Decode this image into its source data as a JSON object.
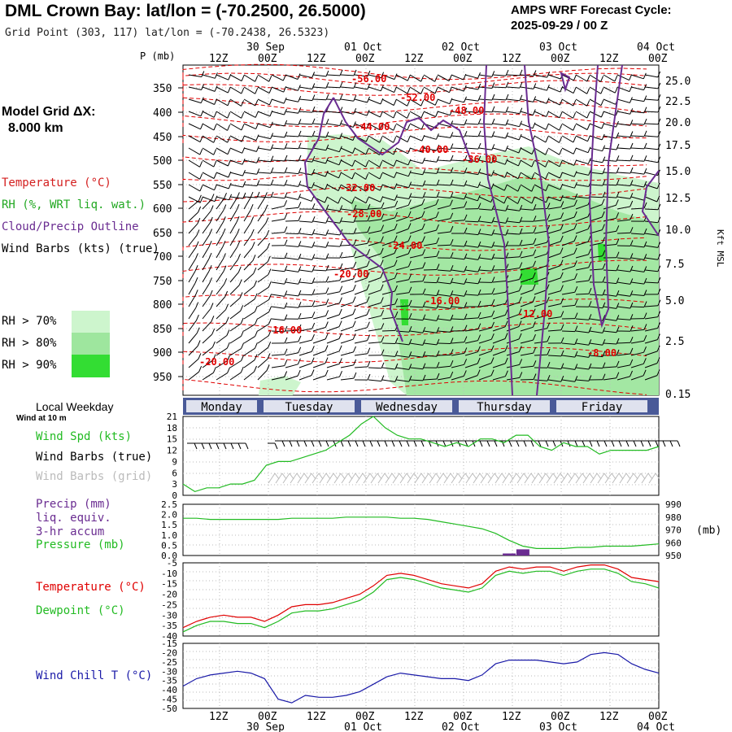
{
  "header": {
    "title": "DML Crown Bay:  lat/lon = (-70.2500, 26.5000)",
    "grid_point": "Grid Point (303, 117) lat/lon = (-70.2438, 26.5323)",
    "cycle_line1": "AMPS WRF Forecast Cycle:",
    "cycle_line2": "2025-09-29 / 00  Z"
  },
  "left_panel": {
    "model_grid_line1": "Model Grid ΔX:",
    "model_grid_line2": "8.000 km",
    "legend": [
      {
        "label": "Temperature (°C)",
        "color": "#d42020"
      },
      {
        "label": "RH (%, WRT liq. wat.)",
        "color": "#22a822"
      },
      {
        "label": "Cloud/Precip Outline",
        "color": "#6a2c91"
      },
      {
        "label": "Wind Barbs (kts) (true)",
        "color": "#000000"
      }
    ],
    "rh_legend": [
      {
        "label": "RH > 70%",
        "color": "#cdf5cd"
      },
      {
        "label": "RH > 80%",
        "color": "#9ee69e"
      },
      {
        "label": "RH > 90%",
        "color": "#33dd33"
      }
    ],
    "local_weekday": "Local Weekday",
    "wind_at": "Wind at 10 m",
    "wind_spd": "Wind Spd (kts)",
    "wind_barbs_true": "Wind Barbs (true)",
    "wind_barbs_grid": "Wind Barbs (grid)",
    "precip1": "Precip (mm)",
    "precip2": "liq. equiv.",
    "precip3": "3-hr accum",
    "pressure": "Pressure (mb)",
    "temperature": "Temperature (°C)",
    "dewpoint": "Dewpoint (°C)",
    "wind_chill": "Wind Chill T (°C)"
  },
  "colors": {
    "temp": "#e00000",
    "green": "#22bb22",
    "purple": "#6a2c91",
    "blue": "#1a1aa8",
    "weekday_bar": "#4a5a98"
  },
  "chart_data": [
    {
      "type": "heatmap",
      "title": "Time-height cross section",
      "ylabel": "P (mb)",
      "yright_label": "Kft MSL",
      "y_ticks": [
        "350",
        "400",
        "450",
        "500",
        "550",
        "600",
        "650",
        "700",
        "750",
        "800",
        "850",
        "900",
        "950"
      ],
      "yright_ticks": [
        "25.0",
        "22.5",
        "20.0",
        "17.5",
        "15.0",
        "12.5",
        "10.0",
        "7.5",
        "5.0",
        "2.5",
        "0.15"
      ],
      "top_time_ticks": [
        "12Z",
        "00Z",
        "12Z",
        "00Z",
        "12Z",
        "00Z",
        "12Z",
        "00Z",
        "12Z",
        "00Z"
      ],
      "top_date_labels": [
        "30 Sep",
        "01 Oct",
        "02 Oct",
        "03 Oct",
        "04 Oct"
      ],
      "temperature_labels": [
        "-56.00",
        "-52.00",
        "-48.00",
        "-44.00",
        "-40.00",
        "-36.00",
        "-32.00",
        "-28.00",
        "-24.00",
        "-20.00",
        "-16.00",
        "-16.00",
        "-12.00",
        "-8.00",
        "-20.00"
      ]
    },
    {
      "type": "line",
      "title": "Wind Spd (kts)",
      "weekdays": [
        "Monday",
        "Tuesday",
        "Wednesday",
        "Thursday",
        "Friday"
      ],
      "y_ticks": [
        "21",
        "18",
        "15",
        "12",
        "9",
        "6",
        "3",
        "0"
      ],
      "ylim": [
        0,
        21
      ],
      "series": [
        {
          "name": "Wind Spd",
          "values": [
            3,
            1,
            2,
            2,
            3,
            3,
            4,
            8,
            9,
            9,
            10,
            11,
            12,
            14,
            16,
            19,
            21,
            18,
            16,
            15,
            15,
            14,
            13,
            14,
            13,
            15,
            15,
            14,
            16,
            16,
            13,
            12,
            14,
            13,
            13,
            11,
            12,
            12,
            12,
            12,
            13
          ]
        }
      ]
    },
    {
      "type": "line",
      "title": "Precip / Pressure",
      "y_ticks_left": [
        "2.5",
        "2.0",
        "1.5",
        "1.0",
        "0.5",
        "0.0"
      ],
      "y_ticks_right": [
        "990",
        "980",
        "970",
        "960",
        "950"
      ],
      "right_unit": "(mb)",
      "ylim_left": [
        0,
        2.5
      ],
      "ylim_right": [
        948,
        992
      ],
      "series": [
        {
          "name": "Pressure",
          "values": [
            980,
            980,
            979,
            979,
            979,
            979,
            979,
            979,
            980,
            980,
            980,
            980,
            981,
            981,
            981,
            981,
            980,
            980,
            979,
            977,
            975,
            973,
            971,
            967,
            961,
            956,
            954,
            954,
            954,
            955,
            955,
            956,
            956,
            956,
            957,
            958
          ]
        },
        {
          "name": "Precip",
          "values": [
            0,
            0,
            0,
            0,
            0,
            0,
            0,
            0,
            0,
            0,
            0,
            0,
            0,
            0,
            0,
            0,
            0,
            0,
            0,
            0,
            0,
            0,
            0,
            0,
            0.1,
            0.3,
            0,
            0,
            0,
            0,
            0,
            0,
            0,
            0,
            0,
            0
          ]
        }
      ]
    },
    {
      "type": "line",
      "title": "Temperature / Dewpoint",
      "y_ticks": [
        "-5",
        "-10",
        "-15",
        "-20",
        "-25",
        "-30",
        "-35",
        "-40"
      ],
      "ylim": [
        -40,
        -5
      ],
      "series": [
        {
          "name": "Temperature",
          "values": [
            -36,
            -33,
            -31,
            -30,
            -31,
            -31,
            -33,
            -30,
            -26,
            -25,
            -25,
            -24,
            -22,
            -20,
            -16,
            -11,
            -10,
            -11,
            -13,
            -15,
            -16,
            -17,
            -15,
            -9,
            -7,
            -8,
            -7,
            -7,
            -9,
            -7,
            -6,
            -6,
            -8,
            -12,
            -13,
            -14
          ]
        },
        {
          "name": "Dewpoint",
          "values": [
            -38,
            -35,
            -33,
            -33,
            -34,
            -34,
            -36,
            -33,
            -29,
            -28,
            -28,
            -27,
            -25,
            -23,
            -19,
            -13,
            -12,
            -13,
            -15,
            -17,
            -18,
            -19,
            -17,
            -11,
            -9,
            -10,
            -9,
            -9,
            -11,
            -9,
            -8,
            -8,
            -10,
            -14,
            -15,
            -17
          ]
        }
      ]
    },
    {
      "type": "line",
      "title": "Wind Chill T (°C)",
      "y_ticks": [
        "-15",
        "-20",
        "-25",
        "-30",
        "-35",
        "-40",
        "-45",
        "-50"
      ],
      "ylim": [
        -50,
        -15
      ],
      "series": [
        {
          "name": "Wind Chill",
          "values": [
            -38,
            -34,
            -32,
            -31,
            -30,
            -31,
            -34,
            -45,
            -47,
            -43,
            -44,
            -44,
            -43,
            -41,
            -37,
            -33,
            -31,
            -32,
            -33,
            -34,
            -34,
            -35,
            -32,
            -26,
            -24,
            -24,
            -24,
            -25,
            -26,
            -25,
            -21,
            -20,
            -21,
            -26,
            -29,
            -31
          ]
        }
      ]
    }
  ],
  "bottom_axis": {
    "time_ticks": [
      "12Z",
      "00Z",
      "12Z",
      "00Z",
      "12Z",
      "00Z",
      "12Z",
      "00Z",
      "12Z",
      "00Z"
    ],
    "date_labels": [
      "30 Sep",
      "01 Oct",
      "02 Oct",
      "03 Oct",
      "04 Oct"
    ]
  }
}
